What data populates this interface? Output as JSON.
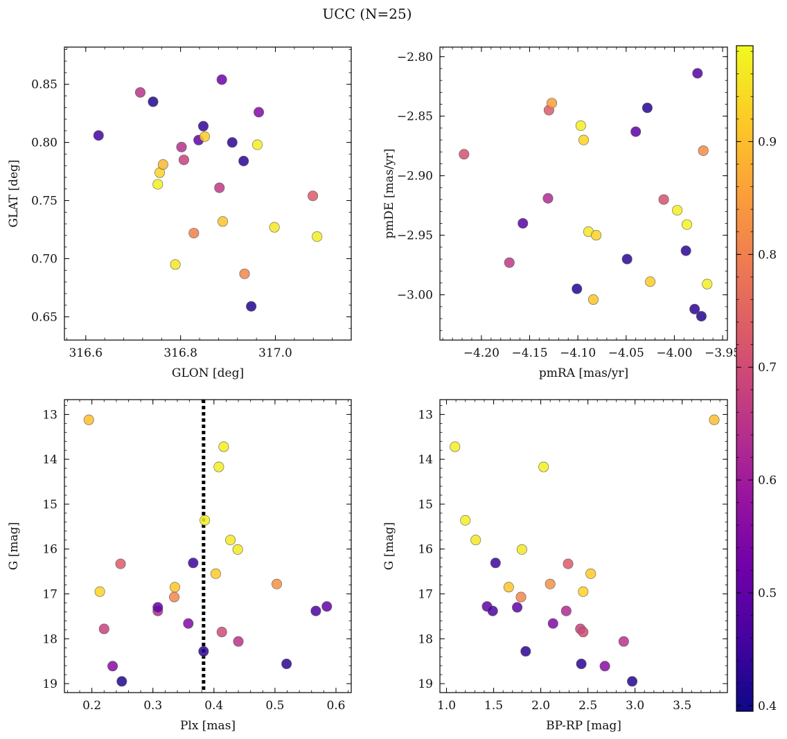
{
  "title": "UCC (N=25)",
  "colormap": {
    "name": "plasma",
    "min": 0.395,
    "max": 0.985,
    "ticks": [
      "0.4",
      "0.5",
      "0.6",
      "0.7",
      "0.8",
      "0.9"
    ],
    "stops": [
      "#0d0887",
      "#46039f",
      "#7201a8",
      "#9c179e",
      "#bd3786",
      "#d8576b",
      "#ed7953",
      "#fb9f3a",
      "#fdca26",
      "#f0f921"
    ]
  },
  "chart_data": [
    {
      "type": "scatter",
      "xlabel": "GLON [deg]",
      "ylabel": "GLAT [deg]",
      "xlim": [
        316.555,
        317.16
      ],
      "ylim": [
        0.63,
        0.882
      ],
      "invert_y": false,
      "xticks": [
        "316.6",
        "316.8",
        "317.0"
      ],
      "yticks": [
        "0.65",
        "0.70",
        "0.75",
        "0.80",
        "0.85"
      ],
      "points": [
        {
          "x": 316.627,
          "y": 0.806,
          "c": 0.46
        },
        {
          "x": 316.715,
          "y": 0.843,
          "c": 0.65
        },
        {
          "x": 316.742,
          "y": 0.835,
          "c": 0.42
        },
        {
          "x": 316.752,
          "y": 0.764,
          "c": 0.97
        },
        {
          "x": 316.756,
          "y": 0.774,
          "c": 0.93
        },
        {
          "x": 316.763,
          "y": 0.781,
          "c": 0.89
        },
        {
          "x": 316.789,
          "y": 0.695,
          "c": 0.96
        },
        {
          "x": 316.802,
          "y": 0.796,
          "c": 0.64
        },
        {
          "x": 316.807,
          "y": 0.785,
          "c": 0.68
        },
        {
          "x": 316.828,
          "y": 0.722,
          "c": 0.8
        },
        {
          "x": 316.838,
          "y": 0.802,
          "c": 0.5
        },
        {
          "x": 316.848,
          "y": 0.814,
          "c": 0.44
        },
        {
          "x": 316.851,
          "y": 0.805,
          "c": 0.92
        },
        {
          "x": 316.882,
          "y": 0.761,
          "c": 0.66
        },
        {
          "x": 316.887,
          "y": 0.854,
          "c": 0.52
        },
        {
          "x": 316.889,
          "y": 0.732,
          "c": 0.91
        },
        {
          "x": 316.909,
          "y": 0.8,
          "c": 0.43
        },
        {
          "x": 316.933,
          "y": 0.784,
          "c": 0.43
        },
        {
          "x": 316.935,
          "y": 0.687,
          "c": 0.81
        },
        {
          "x": 316.949,
          "y": 0.659,
          "c": 0.42
        },
        {
          "x": 316.962,
          "y": 0.798,
          "c": 0.97
        },
        {
          "x": 316.965,
          "y": 0.826,
          "c": 0.55
        },
        {
          "x": 316.998,
          "y": 0.727,
          "c": 0.96
        },
        {
          "x": 317.079,
          "y": 0.754,
          "c": 0.73
        },
        {
          "x": 317.088,
          "y": 0.719,
          "c": 0.97
        }
      ]
    },
    {
      "type": "scatter",
      "xlabel": "pmRA [mas/yr]",
      "ylabel": "pmDE [mas/yr]",
      "xlim": [
        -4.243,
        -3.945
      ],
      "ylim": [
        -3.038,
        -2.792
      ],
      "invert_y": false,
      "xticks": [
        "−4.20",
        "−4.15",
        "−4.10",
        "−4.05",
        "−4.00",
        "−3.95"
      ],
      "yticks": [
        "−2.80",
        "−2.85",
        "−2.90",
        "−2.95",
        "−3.00"
      ],
      "points": [
        {
          "x": -4.218,
          "y": -2.882,
          "c": 0.71
        },
        {
          "x": -4.171,
          "y": -2.973,
          "c": 0.66
        },
        {
          "x": -4.157,
          "y": -2.94,
          "c": 0.49
        },
        {
          "x": -4.131,
          "y": -2.919,
          "c": 0.63
        },
        {
          "x": -4.13,
          "y": -2.845,
          "c": 0.73
        },
        {
          "x": -4.127,
          "y": -2.839,
          "c": 0.85
        },
        {
          "x": -4.101,
          "y": -2.995,
          "c": 0.42
        },
        {
          "x": -4.097,
          "y": -2.858,
          "c": 0.97
        },
        {
          "x": -4.094,
          "y": -2.87,
          "c": 0.93
        },
        {
          "x": -4.089,
          "y": -2.947,
          "c": 0.96
        },
        {
          "x": -4.084,
          "y": -3.004,
          "c": 0.91
        },
        {
          "x": -4.081,
          "y": -2.95,
          "c": 0.93
        },
        {
          "x": -4.049,
          "y": -2.97,
          "c": 0.43
        },
        {
          "x": -4.04,
          "y": -2.863,
          "c": 0.49
        },
        {
          "x": -4.028,
          "y": -2.843,
          "c": 0.42
        },
        {
          "x": -4.025,
          "y": -2.989,
          "c": 0.92
        },
        {
          "x": -4.011,
          "y": -2.92,
          "c": 0.71
        },
        {
          "x": -3.997,
          "y": -2.929,
          "c": 0.97
        },
        {
          "x": -3.988,
          "y": -2.963,
          "c": 0.43
        },
        {
          "x": -3.987,
          "y": -2.941,
          "c": 0.98
        },
        {
          "x": -3.979,
          "y": -3.012,
          "c": 0.43
        },
        {
          "x": -3.976,
          "y": -2.814,
          "c": 0.48
        },
        {
          "x": -3.972,
          "y": -3.018,
          "c": 0.42
        },
        {
          "x": -3.97,
          "y": -2.879,
          "c": 0.82
        },
        {
          "x": -3.966,
          "y": -2.991,
          "c": 0.97
        }
      ]
    },
    {
      "type": "scatter",
      "xlabel": "Plx [mas]",
      "ylabel": "G [mag]",
      "xlim": [
        0.155,
        0.625
      ],
      "ylim": [
        12.67,
        19.2
      ],
      "invert_y": true,
      "xticks": [
        "0.2",
        "0.3",
        "0.4",
        "0.5",
        "0.6"
      ],
      "yticks": [
        "13",
        "14",
        "15",
        "16",
        "17",
        "18",
        "19"
      ],
      "vline": 0.383,
      "points": [
        {
          "x": 0.195,
          "y": 13.12,
          "c": 0.9
        },
        {
          "x": 0.213,
          "y": 16.95,
          "c": 0.93
        },
        {
          "x": 0.22,
          "y": 17.78,
          "c": 0.68
        },
        {
          "x": 0.234,
          "y": 18.61,
          "c": 0.56
        },
        {
          "x": 0.247,
          "y": 16.33,
          "c": 0.73
        },
        {
          "x": 0.249,
          "y": 18.95,
          "c": 0.42
        },
        {
          "x": 0.308,
          "y": 17.38,
          "c": 0.63
        },
        {
          "x": 0.308,
          "y": 17.3,
          "c": 0.5
        },
        {
          "x": 0.335,
          "y": 17.07,
          "c": 0.81
        },
        {
          "x": 0.336,
          "y": 16.85,
          "c": 0.91
        },
        {
          "x": 0.358,
          "y": 17.66,
          "c": 0.55
        },
        {
          "x": 0.366,
          "y": 16.31,
          "c": 0.45
        },
        {
          "x": 0.383,
          "y": 18.28,
          "c": 0.43
        },
        {
          "x": 0.385,
          "y": 15.36,
          "c": 0.97
        },
        {
          "x": 0.403,
          "y": 16.55,
          "c": 0.92
        },
        {
          "x": 0.408,
          "y": 14.17,
          "c": 0.97
        },
        {
          "x": 0.413,
          "y": 17.85,
          "c": 0.7
        },
        {
          "x": 0.416,
          "y": 13.72,
          "c": 0.97
        },
        {
          "x": 0.427,
          "y": 15.8,
          "c": 0.96
        },
        {
          "x": 0.439,
          "y": 16.01,
          "c": 0.96
        },
        {
          "x": 0.44,
          "y": 18.06,
          "c": 0.65
        },
        {
          "x": 0.503,
          "y": 16.78,
          "c": 0.83
        },
        {
          "x": 0.519,
          "y": 18.56,
          "c": 0.43
        },
        {
          "x": 0.567,
          "y": 17.38,
          "c": 0.47
        },
        {
          "x": 0.585,
          "y": 17.28,
          "c": 0.5
        }
      ]
    },
    {
      "type": "scatter",
      "xlabel": "BP-RP [mag]",
      "ylabel": "G [mag]",
      "xlim": [
        0.93,
        3.98
      ],
      "ylim": [
        12.67,
        19.2
      ],
      "invert_y": true,
      "xticks": [
        "1.0",
        "1.5",
        "2.0",
        "2.5",
        "3.0",
        "3.5"
      ],
      "yticks": [
        "13",
        "14",
        "15",
        "16",
        "17",
        "18",
        "19"
      ],
      "points": [
        {
          "x": 1.09,
          "y": 13.72,
          "c": 0.97
        },
        {
          "x": 1.2,
          "y": 15.36,
          "c": 0.97
        },
        {
          "x": 1.31,
          "y": 15.8,
          "c": 0.96
        },
        {
          "x": 1.43,
          "y": 17.28,
          "c": 0.5
        },
        {
          "x": 1.49,
          "y": 17.38,
          "c": 0.47
        },
        {
          "x": 1.52,
          "y": 16.31,
          "c": 0.45
        },
        {
          "x": 1.66,
          "y": 16.85,
          "c": 0.91
        },
        {
          "x": 1.75,
          "y": 17.3,
          "c": 0.5
        },
        {
          "x": 1.79,
          "y": 17.07,
          "c": 0.81
        },
        {
          "x": 1.8,
          "y": 16.01,
          "c": 0.96
        },
        {
          "x": 1.84,
          "y": 18.28,
          "c": 0.43
        },
        {
          "x": 2.03,
          "y": 14.17,
          "c": 0.97
        },
        {
          "x": 2.1,
          "y": 16.78,
          "c": 0.83
        },
        {
          "x": 2.13,
          "y": 17.66,
          "c": 0.55
        },
        {
          "x": 2.27,
          "y": 17.38,
          "c": 0.63
        },
        {
          "x": 2.29,
          "y": 16.33,
          "c": 0.73
        },
        {
          "x": 2.42,
          "y": 17.78,
          "c": 0.68
        },
        {
          "x": 2.43,
          "y": 18.56,
          "c": 0.43
        },
        {
          "x": 2.45,
          "y": 17.85,
          "c": 0.7
        },
        {
          "x": 2.45,
          "y": 16.95,
          "c": 0.93
        },
        {
          "x": 2.53,
          "y": 16.55,
          "c": 0.92
        },
        {
          "x": 2.68,
          "y": 18.61,
          "c": 0.56
        },
        {
          "x": 2.88,
          "y": 18.06,
          "c": 0.65
        },
        {
          "x": 2.97,
          "y": 18.95,
          "c": 0.42
        },
        {
          "x": 3.84,
          "y": 13.12,
          "c": 0.9
        }
      ]
    }
  ]
}
